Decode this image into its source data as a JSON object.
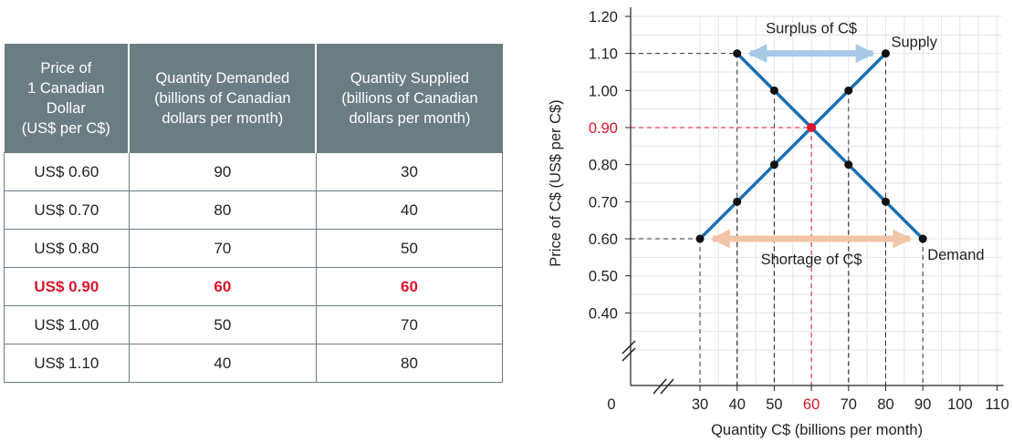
{
  "table": {
    "headers": [
      "Price of\n1 Canadian\nDollar\n(US$ per C$)",
      "Quantity Demanded\n(billions of Canadian\ndollars per month)",
      "Quantity Supplied\n(billions of Canadian\ndollars per month)"
    ],
    "rows": [
      [
        "US$ 0.60",
        "90",
        "30"
      ],
      [
        "US$ 0.70",
        "80",
        "40"
      ],
      [
        "US$ 0.80",
        "70",
        "50"
      ],
      [
        "US$ 0.90",
        "60",
        "60"
      ],
      [
        "US$ 1.00",
        "50",
        "70"
      ],
      [
        "US$ 1.10",
        "40",
        "80"
      ]
    ],
    "highlight_row": 3
  },
  "colors": {
    "line": "#1a6fb4",
    "highlight": "#d9152b",
    "grid": "#dde6ee",
    "surplus": "#a8c8e8",
    "shortage": "#f2c4a7",
    "header_bg": "#6c7c83"
  },
  "chart_data": {
    "type": "line",
    "xlabel": "Quantity C$ (billions per month)",
    "ylabel": "Price of C$ (US$ per C$)",
    "x_ticks": [
      "0",
      "30",
      "40",
      "50",
      "60",
      "70",
      "80",
      "90",
      "100",
      "110"
    ],
    "y_ticks": [
      "0.40",
      "0.50",
      "0.60",
      "0.70",
      "0.80",
      "0.90",
      "1.00",
      "1.10",
      "1.20"
    ],
    "xlim": [
      30,
      110
    ],
    "ylim": [
      0.3,
      1.2
    ],
    "axis_breaks": true,
    "grid": true,
    "series": [
      {
        "name": "Supply",
        "points": [
          [
            30,
            0.6
          ],
          [
            40,
            0.7
          ],
          [
            50,
            0.8
          ],
          [
            60,
            0.9
          ],
          [
            70,
            1.0
          ],
          [
            80,
            1.1
          ]
        ]
      },
      {
        "name": "Demand",
        "points": [
          [
            40,
            1.1
          ],
          [
            50,
            1.0
          ],
          [
            60,
            0.9
          ],
          [
            70,
            0.8
          ],
          [
            80,
            0.7
          ],
          [
            90,
            0.6
          ]
        ]
      }
    ],
    "equilibrium": {
      "x": 60,
      "y": 0.9,
      "x_label": "60",
      "y_label": "0.90"
    },
    "annotations": [
      {
        "text": "Surplus of C$",
        "price": 1.1,
        "from_x": 40,
        "to_x": 80
      },
      {
        "text": "Shortage of C$",
        "price": 0.6,
        "from_x": 30,
        "to_x": 90
      }
    ]
  }
}
